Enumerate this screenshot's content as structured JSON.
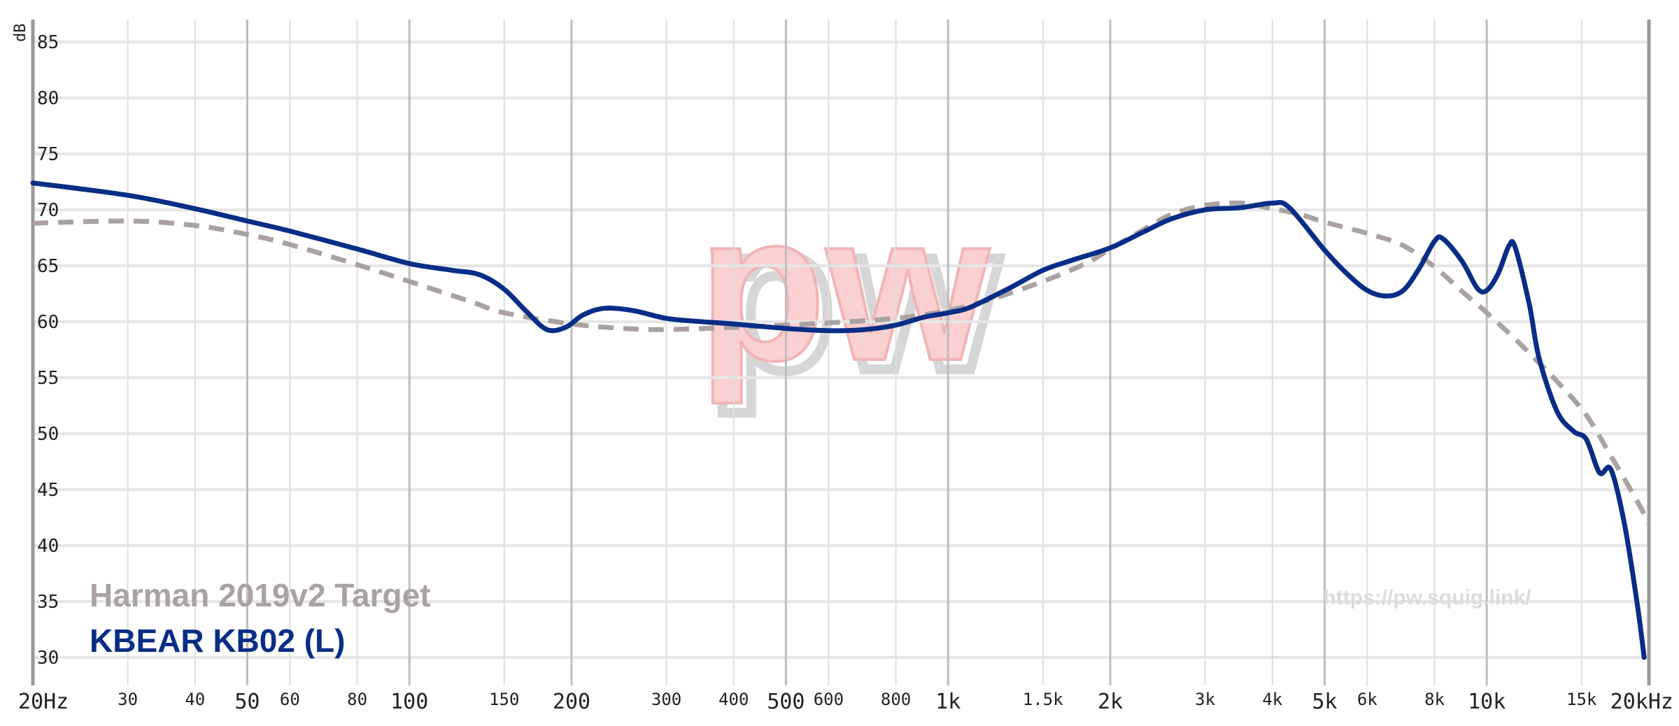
{
  "chart_data": {
    "type": "line",
    "y_unit_label": "dB",
    "x_scale": "log",
    "xlim": [
      20,
      20000
    ],
    "ylim": [
      28,
      87
    ],
    "y_ticks": [
      30,
      35,
      40,
      45,
      50,
      55,
      60,
      65,
      70,
      75,
      80,
      85
    ],
    "x_ticks": [
      {
        "value": 20,
        "label": "20Hz",
        "major": true
      },
      {
        "value": 30,
        "label": "30",
        "major": false
      },
      {
        "value": 40,
        "label": "40",
        "major": false
      },
      {
        "value": 50,
        "label": "50",
        "major": true
      },
      {
        "value": 60,
        "label": "60",
        "major": false
      },
      {
        "value": 80,
        "label": "80",
        "major": false
      },
      {
        "value": 100,
        "label": "100",
        "major": true
      },
      {
        "value": 150,
        "label": "150",
        "major": false
      },
      {
        "value": 200,
        "label": "200",
        "major": true
      },
      {
        "value": 300,
        "label": "300",
        "major": false
      },
      {
        "value": 400,
        "label": "400",
        "major": false
      },
      {
        "value": 500,
        "label": "500",
        "major": true
      },
      {
        "value": 600,
        "label": "600",
        "major": false
      },
      {
        "value": 800,
        "label": "800",
        "major": false
      },
      {
        "value": 1000,
        "label": "1k",
        "major": true
      },
      {
        "value": 1500,
        "label": "1.5k",
        "major": false
      },
      {
        "value": 2000,
        "label": "2k",
        "major": true
      },
      {
        "value": 3000,
        "label": "3k",
        "major": false
      },
      {
        "value": 4000,
        "label": "4k",
        "major": false
      },
      {
        "value": 5000,
        "label": "5k",
        "major": true
      },
      {
        "value": 6000,
        "label": "6k",
        "major": false
      },
      {
        "value": 8000,
        "label": "8k",
        "major": false
      },
      {
        "value": 10000,
        "label": "10k",
        "major": true
      },
      {
        "value": 15000,
        "label": "15k",
        "major": false
      },
      {
        "value": 20000,
        "label": "20kHz",
        "major": true
      }
    ],
    "legend_placement": "bottom-left",
    "series": [
      {
        "name": "Harman 2019v2 Target",
        "color": "#aaa1a1",
        "dashed": true,
        "points": [
          [
            20,
            68.8
          ],
          [
            30,
            69.0
          ],
          [
            40,
            68.6
          ],
          [
            50,
            67.8
          ],
          [
            60,
            66.9
          ],
          [
            80,
            65.1
          ],
          [
            100,
            63.6
          ],
          [
            130,
            61.8
          ],
          [
            150,
            60.8
          ],
          [
            200,
            59.8
          ],
          [
            250,
            59.4
          ],
          [
            300,
            59.3
          ],
          [
            400,
            59.5
          ],
          [
            500,
            59.7
          ],
          [
            600,
            59.9
          ],
          [
            800,
            60.3
          ],
          [
            1000,
            61.0
          ],
          [
            1200,
            62.0
          ],
          [
            1500,
            63.6
          ],
          [
            1800,
            65.2
          ],
          [
            2000,
            66.5
          ],
          [
            2300,
            68.2
          ],
          [
            2600,
            69.6
          ],
          [
            3000,
            70.4
          ],
          [
            3500,
            70.6
          ],
          [
            4000,
            70.1
          ],
          [
            4500,
            69.6
          ],
          [
            5000,
            68.9
          ],
          [
            6000,
            67.9
          ],
          [
            7000,
            66.8
          ],
          [
            8000,
            64.9
          ],
          [
            9000,
            62.7
          ],
          [
            10000,
            60.8
          ],
          [
            12000,
            57.2
          ],
          [
            15000,
            52.2
          ],
          [
            17000,
            48.0
          ],
          [
            19000,
            44.0
          ],
          [
            20000,
            42.0
          ]
        ]
      },
      {
        "name": "KBEAR KB02 (L)",
        "color": "#072d86",
        "dashed": false,
        "points": [
          [
            20,
            72.4
          ],
          [
            30,
            71.3
          ],
          [
            40,
            70.1
          ],
          [
            50,
            69.0
          ],
          [
            60,
            68.1
          ],
          [
            80,
            66.5
          ],
          [
            100,
            65.2
          ],
          [
            120,
            64.6
          ],
          [
            135,
            64.2
          ],
          [
            150,
            62.9
          ],
          [
            165,
            60.9
          ],
          [
            180,
            59.3
          ],
          [
            195,
            59.5
          ],
          [
            210,
            60.6
          ],
          [
            230,
            61.2
          ],
          [
            260,
            61.0
          ],
          [
            300,
            60.3
          ],
          [
            350,
            60.0
          ],
          [
            400,
            59.8
          ],
          [
            500,
            59.4
          ],
          [
            600,
            59.2
          ],
          [
            700,
            59.3
          ],
          [
            800,
            59.7
          ],
          [
            900,
            60.4
          ],
          [
            1000,
            60.8
          ],
          [
            1100,
            61.3
          ],
          [
            1300,
            63.0
          ],
          [
            1500,
            64.6
          ],
          [
            1700,
            65.5
          ],
          [
            2000,
            66.6
          ],
          [
            2300,
            68.0
          ],
          [
            2600,
            69.2
          ],
          [
            3000,
            70.0
          ],
          [
            3500,
            70.2
          ],
          [
            4000,
            70.6
          ],
          [
            4300,
            70.2
          ],
          [
            5000,
            66.4
          ],
          [
            5500,
            64.3
          ],
          [
            6000,
            62.8
          ],
          [
            6500,
            62.3
          ],
          [
            7000,
            62.8
          ],
          [
            7500,
            64.8
          ],
          [
            8000,
            67.2
          ],
          [
            8300,
            67.4
          ],
          [
            9000,
            65.4
          ],
          [
            9600,
            63.0
          ],
          [
            10000,
            62.8
          ],
          [
            10500,
            64.3
          ],
          [
            11000,
            66.8
          ],
          [
            11300,
            66.6
          ],
          [
            12000,
            61.5
          ],
          [
            12500,
            56.8
          ],
          [
            13500,
            52.0
          ],
          [
            14500,
            50.2
          ],
          [
            15300,
            49.5
          ],
          [
            16200,
            46.5
          ],
          [
            17000,
            46.8
          ],
          [
            18000,
            42.0
          ],
          [
            19000,
            35.0
          ],
          [
            19600,
            30.0
          ]
        ]
      }
    ]
  },
  "source_url": "https://pw.squig.link/",
  "watermark_text": "pw"
}
